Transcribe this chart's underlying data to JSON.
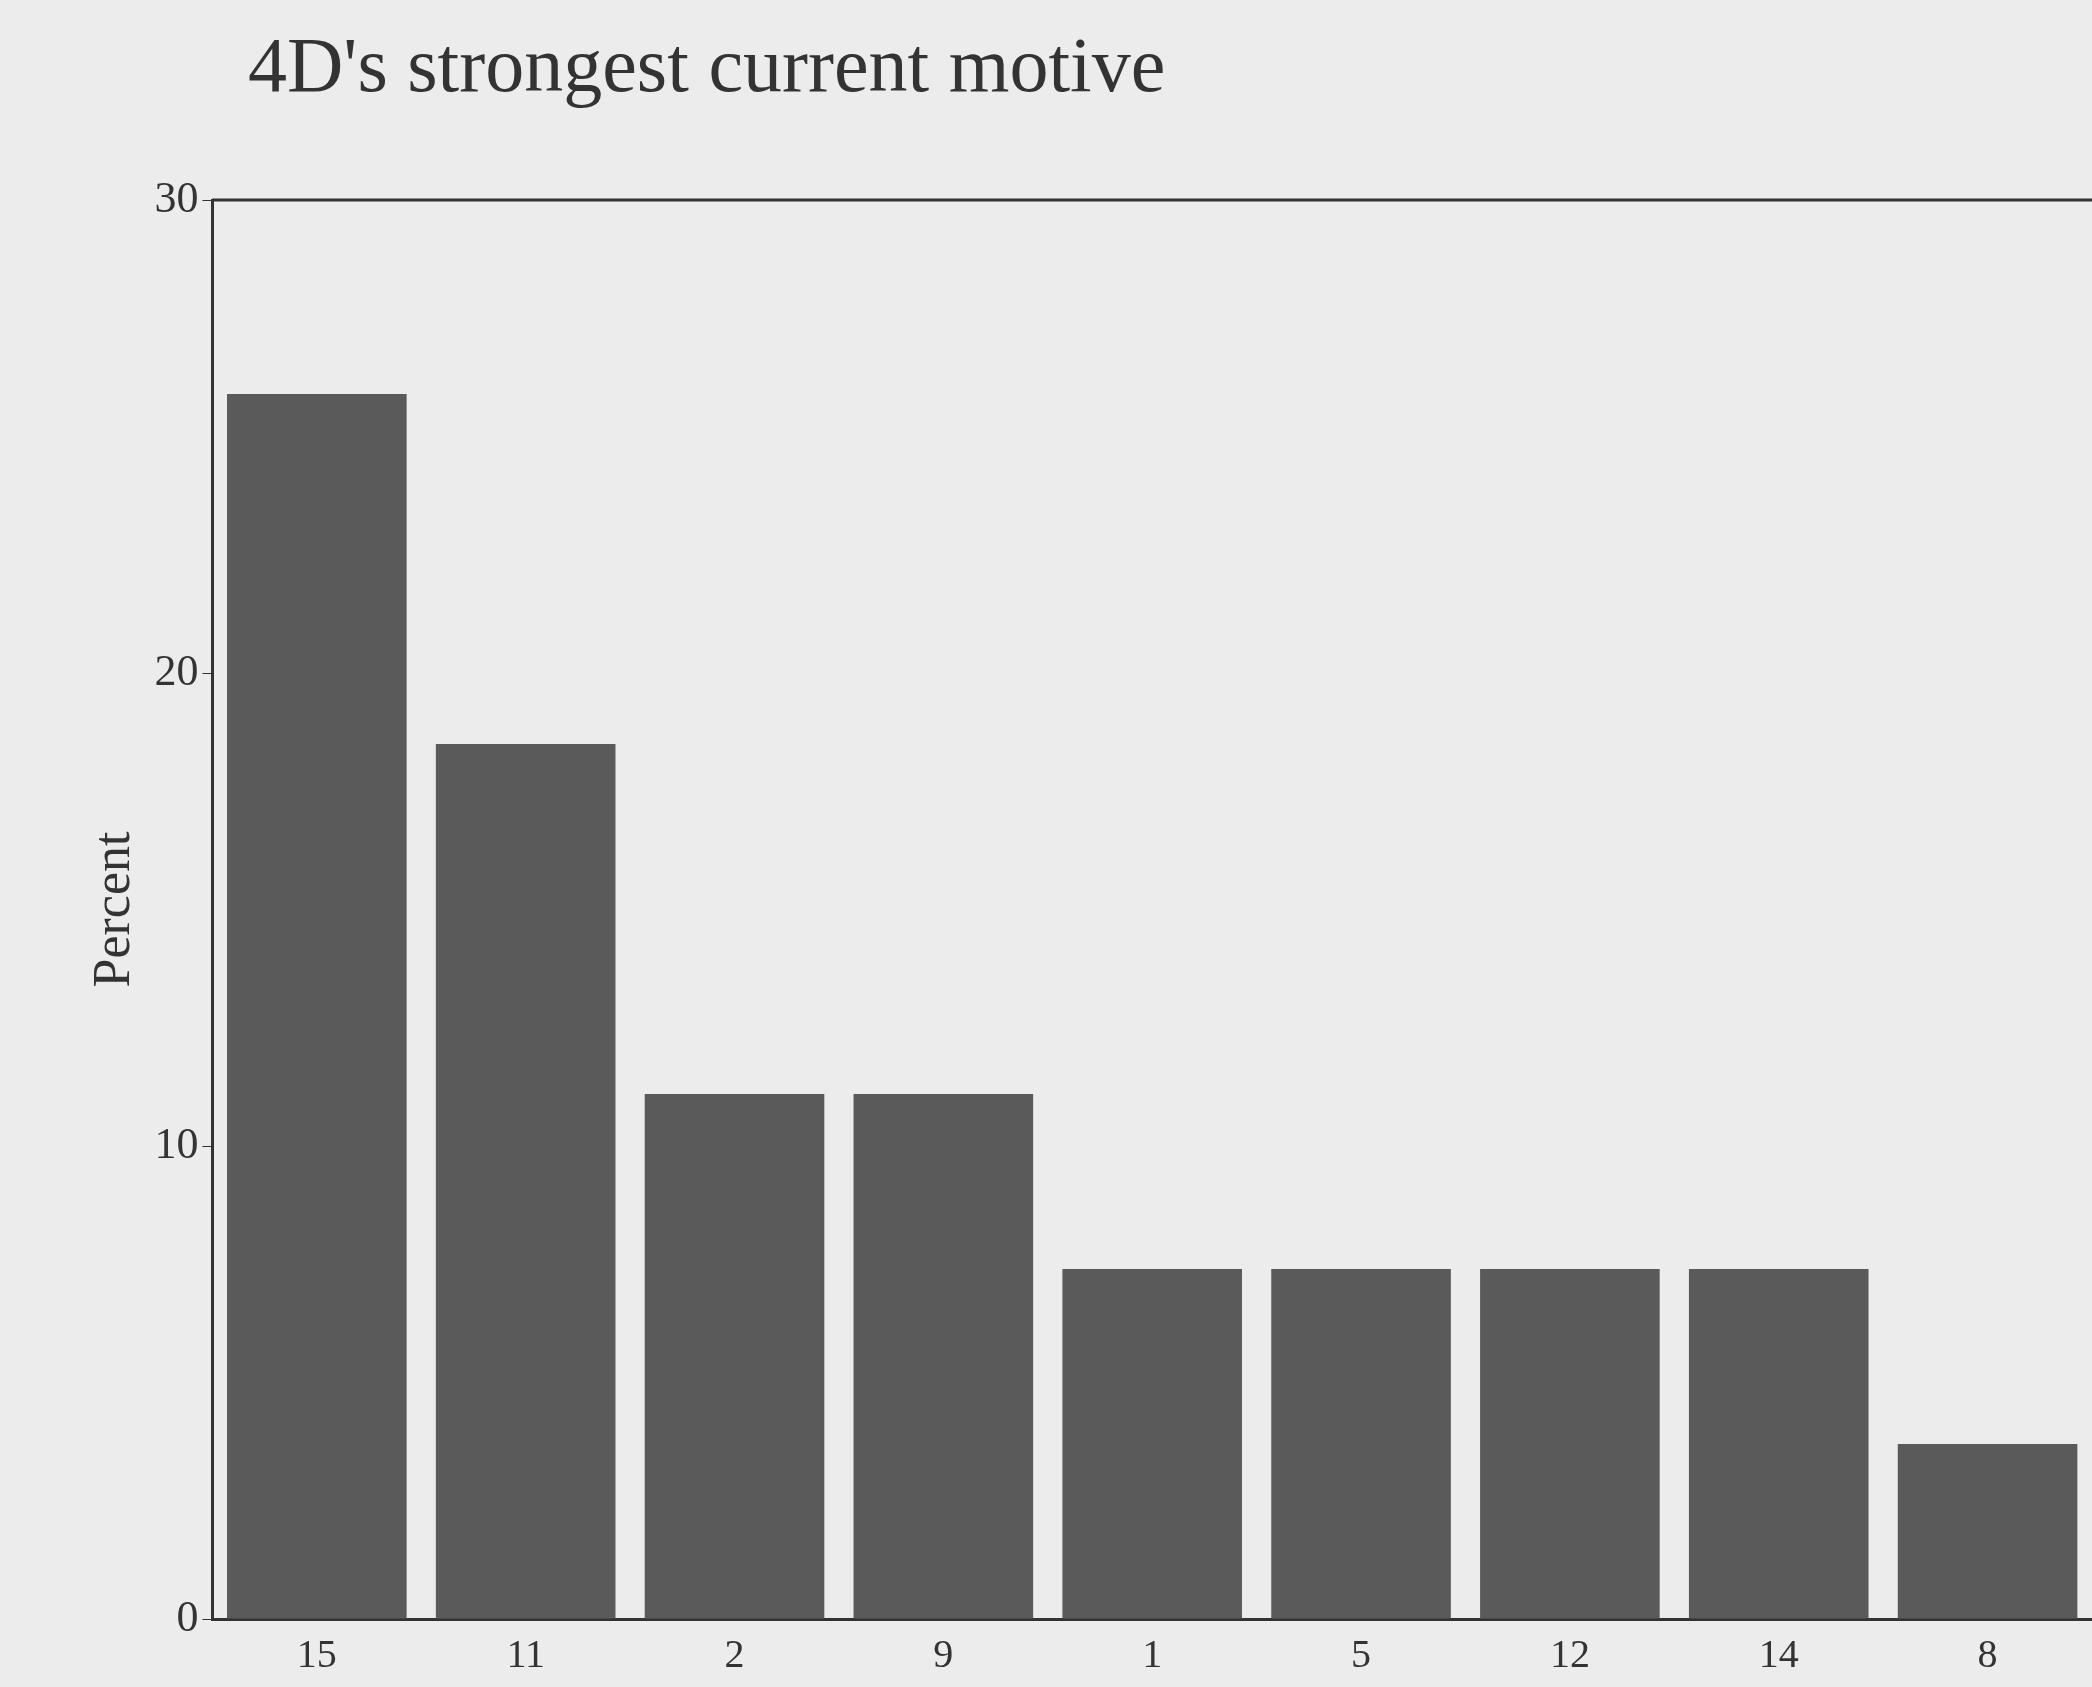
{
  "chart_data": {
    "type": "bar",
    "title": "4D's strongest current motive",
    "ylabel": "Percent",
    "categories": [
      "15",
      "11",
      "2",
      "9",
      "1",
      "5",
      "12",
      "14",
      "8"
    ],
    "values": [
      25.9,
      18.5,
      11.1,
      11.1,
      7.4,
      7.4,
      7.4,
      7.4,
      3.7
    ],
    "color": "#5a5a5a",
    "ylim": [
      0,
      30
    ],
    "yticks": [
      0,
      10,
      20,
      30
    ],
    "legend": false
  }
}
